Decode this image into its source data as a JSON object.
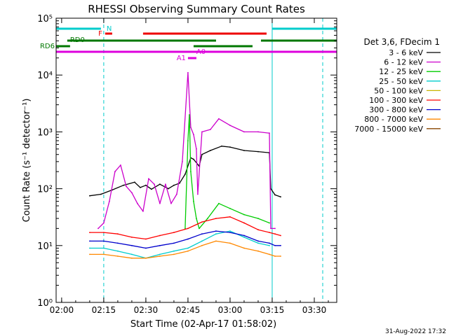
{
  "chart_data": {
    "type": "line",
    "title": "RHESSI Observing Summary Count Rates",
    "xlabel": "Start Time (02-Apr-17 01:58:02)",
    "ylabel": "Count Rate (s⁻¹ detector⁻¹)",
    "yscale": "log",
    "ylim": [
      1,
      100000
    ],
    "xlim": [
      "01:58:02",
      "03:38:00"
    ],
    "x_ticks": [
      "02:00",
      "02:15",
      "02:30",
      "02:45",
      "03:00",
      "03:15",
      "03:30"
    ],
    "y_ticks": [
      "10⁰",
      "10¹",
      "10²",
      "10³",
      "10⁴",
      "10⁵"
    ],
    "legend_title": "Det 3,6, FDecim 1",
    "legend_placement": "right",
    "footer": "31-Aug-2022 17:32",
    "series": [
      {
        "name": "3 - 6 keV",
        "color": "#000000",
        "points": [
          [
            "02:10",
            75
          ],
          [
            "02:14",
            80
          ],
          [
            "02:18",
            95
          ],
          [
            "02:22",
            115
          ],
          [
            "02:26",
            130
          ],
          [
            "02:28",
            105
          ],
          [
            "02:30",
            115
          ],
          [
            "02:32",
            98
          ],
          [
            "02:35",
            120
          ],
          [
            "02:38",
            100
          ],
          [
            "02:40",
            115
          ],
          [
            "02:42",
            125
          ],
          [
            "02:44",
            180
          ],
          [
            "02:46",
            350
          ],
          [
            "02:47",
            330
          ],
          [
            "02:49",
            250
          ],
          [
            "02:50",
            400
          ],
          [
            "02:53",
            470
          ],
          [
            "02:57",
            560
          ],
          [
            "03:00",
            540
          ],
          [
            "03:05",
            470
          ],
          [
            "03:10",
            450
          ],
          [
            "03:14",
            430
          ],
          [
            "03:14.5",
            100
          ],
          [
            "03:16",
            78
          ],
          [
            "03:18",
            72
          ]
        ]
      },
      {
        "name": "6 - 12 keV",
        "color": "#cc00cc",
        "points": [
          [
            "02:13",
            20
          ],
          [
            "02:15",
            25
          ],
          [
            "02:17",
            60
          ],
          [
            "02:19",
            200
          ],
          [
            "02:21",
            260
          ],
          [
            "02:23",
            110
          ],
          [
            "02:25",
            85
          ],
          [
            "02:27",
            55
          ],
          [
            "02:29",
            40
          ],
          [
            "02:31",
            150
          ],
          [
            "02:33",
            120
          ],
          [
            "02:35",
            55
          ],
          [
            "02:37",
            120
          ],
          [
            "02:39",
            55
          ],
          [
            "02:41",
            80
          ],
          [
            "02:43",
            300
          ],
          [
            "02:45",
            11000
          ],
          [
            "02:46",
            1200
          ],
          [
            "02:47",
            900
          ],
          [
            "02:48",
            500
          ],
          [
            "02:48.5",
            80
          ],
          [
            "02:50",
            1000
          ],
          [
            "02:53",
            1100
          ],
          [
            "02:56",
            1700
          ],
          [
            "03:00",
            1300
          ],
          [
            "03:05",
            1000
          ],
          [
            "03:10",
            1000
          ],
          [
            "03:14",
            950
          ],
          [
            "03:14.5",
            20
          ],
          [
            "03:16",
            20
          ]
        ]
      },
      {
        "name": "12 - 25 keV",
        "color": "#00cc00",
        "points": [
          [
            "02:44",
            20
          ],
          [
            "02:45",
            700
          ],
          [
            "02:45.5",
            2000
          ],
          [
            "02:46",
            200
          ],
          [
            "02:47",
            60
          ],
          [
            "02:48",
            30
          ],
          [
            "02:49",
            20
          ],
          [
            "02:52",
            30
          ],
          [
            "02:56",
            55
          ],
          [
            "03:00",
            45
          ],
          [
            "03:05",
            35
          ],
          [
            "03:10",
            30
          ],
          [
            "03:14",
            25
          ]
        ]
      },
      {
        "name": "25 - 50 keV",
        "color": "#00cccc",
        "points": [
          [
            "02:10",
            9
          ],
          [
            "02:15",
            9
          ],
          [
            "02:20",
            8
          ],
          [
            "02:25",
            7
          ],
          [
            "02:30",
            6
          ],
          [
            "02:35",
            7
          ],
          [
            "02:40",
            8
          ],
          [
            "02:45",
            9
          ],
          [
            "02:50",
            12
          ],
          [
            "02:55",
            16
          ],
          [
            "03:00",
            18
          ],
          [
            "03:05",
            14
          ],
          [
            "03:10",
            11
          ],
          [
            "03:14",
            10
          ]
        ]
      },
      {
        "name": "50 - 100 keV",
        "color": "#c8b400",
        "points": []
      },
      {
        "name": "100 - 300 keV",
        "color": "#ff0000",
        "points": [
          [
            "02:10",
            17
          ],
          [
            "02:15",
            17
          ],
          [
            "02:20",
            16
          ],
          [
            "02:25",
            14
          ],
          [
            "02:30",
            13
          ],
          [
            "02:35",
            15
          ],
          [
            "02:40",
            17
          ],
          [
            "02:45",
            20
          ],
          [
            "02:50",
            26
          ],
          [
            "02:55",
            30
          ],
          [
            "03:00",
            32
          ],
          [
            "03:05",
            25
          ],
          [
            "03:10",
            19
          ],
          [
            "03:14",
            17
          ],
          [
            "03:16",
            16
          ],
          [
            "03:18",
            15
          ]
        ]
      },
      {
        "name": "300 - 800 keV",
        "color": "#0000cc",
        "points": [
          [
            "02:10",
            12
          ],
          [
            "02:15",
            12
          ],
          [
            "02:20",
            11
          ],
          [
            "02:25",
            10
          ],
          [
            "02:30",
            9
          ],
          [
            "02:35",
            10
          ],
          [
            "02:40",
            11
          ],
          [
            "02:45",
            13
          ],
          [
            "02:50",
            16
          ],
          [
            "02:55",
            18
          ],
          [
            "03:00",
            17
          ],
          [
            "03:05",
            15
          ],
          [
            "03:10",
            12
          ],
          [
            "03:14",
            11
          ],
          [
            "03:16",
            10
          ],
          [
            "03:18",
            10
          ]
        ]
      },
      {
        "name": "800 - 7000 keV",
        "color": "#ff8800",
        "points": [
          [
            "02:10",
            7
          ],
          [
            "02:15",
            7
          ],
          [
            "02:20",
            6.5
          ],
          [
            "02:25",
            6
          ],
          [
            "02:30",
            6
          ],
          [
            "02:35",
            6.5
          ],
          [
            "02:40",
            7
          ],
          [
            "02:45",
            8
          ],
          [
            "02:50",
            10
          ],
          [
            "02:55",
            12
          ],
          [
            "03:00",
            11
          ],
          [
            "03:05",
            9
          ],
          [
            "03:10",
            8
          ],
          [
            "03:14",
            7
          ],
          [
            "03:16",
            6.5
          ],
          [
            "03:18",
            6.5
          ]
        ]
      },
      {
        "name": "7000 - 15000 keV",
        "color": "#884400",
        "points": []
      }
    ],
    "bars": [
      {
        "label": "N",
        "color": "#00cccc",
        "segments": [
          [
            "01:58:02",
            "02:14"
          ],
          [
            "03:15",
            "03:38"
          ]
        ]
      },
      {
        "label": "F",
        "color": "#ee0000",
        "segments": [
          [
            "02:15.5",
            "02:18"
          ],
          [
            "02:29",
            "03:13"
          ]
        ]
      },
      {
        "label": "RD0",
        "color": "#007700",
        "segments": [
          [
            "02:02",
            "02:55"
          ],
          [
            "03:11",
            "03:38"
          ]
        ]
      },
      {
        "label": "RD6",
        "color": "#007700",
        "segments": [
          [
            "01:58:02",
            "02:03"
          ],
          [
            "02:47",
            "03:08"
          ]
        ]
      },
      {
        "label": "A1",
        "color": "#dd00dd",
        "segments": [
          [
            "02:45",
            "02:48"
          ]
        ]
      },
      {
        "label": "A0",
        "color": "#dd00dd",
        "segments": [
          [
            "01:58:02",
            "03:38"
          ]
        ]
      }
    ],
    "vertical_markers": [
      {
        "x": "01:58:02",
        "color": "#00cccc",
        "style": "solid"
      },
      {
        "x": "02:15",
        "color": "#00cccc",
        "style": "dashed"
      },
      {
        "x": "03:15",
        "color": "#00cccc",
        "style": "solid"
      },
      {
        "x": "03:33",
        "color": "#00cccc",
        "style": "dashed"
      }
    ]
  }
}
